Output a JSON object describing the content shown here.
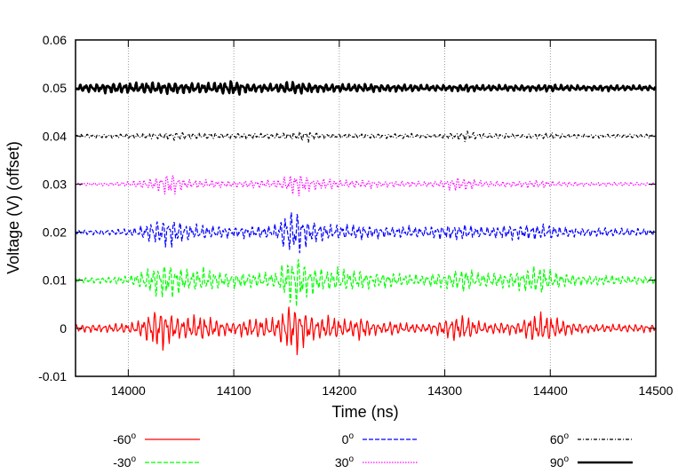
{
  "chart_data": {
    "type": "line",
    "title": "",
    "xlabel": "Time (ns)",
    "ylabel": "Voltage (V) (offset)",
    "xlim": [
      13950,
      14500
    ],
    "ylim": [
      -0.01,
      0.06
    ],
    "xticks": [
      14000,
      14100,
      14200,
      14300,
      14400,
      14500
    ],
    "xtick_labels": [
      "14000",
      "14100",
      "14200",
      "14300",
      "14400",
      "14500"
    ],
    "yticks": [
      -0.01,
      0,
      0.01,
      0.02,
      0.03,
      0.04,
      0.05,
      0.06
    ],
    "ytick_labels": [
      "-0.01",
      "0",
      "0.01",
      "0.02",
      "0.03",
      "0.04",
      "0.05",
      "0.06"
    ],
    "grid": "vertical dotted at x ticks",
    "legend_position": "bottom, below plot, three columns",
    "series": [
      {
        "name": "-60",
        "name_superscript": "o",
        "offset": 0,
        "color": "#ff0000",
        "dash": "solid",
        "width": 1.2,
        "x": [
          13950,
          13960,
          13970,
          13980,
          13990,
          14000,
          14010,
          14020,
          14030,
          14040,
          14050,
          14060,
          14070,
          14080,
          14090,
          14100,
          14110,
          14120,
          14130,
          14140,
          14150,
          14160,
          14170,
          14180,
          14190,
          14200,
          14210,
          14220,
          14230,
          14240,
          14250,
          14260,
          14270,
          14280,
          14290,
          14300,
          14310,
          14320,
          14330,
          14340,
          14350,
          14360,
          14370,
          14380,
          14390,
          14400,
          14410,
          14420,
          14430,
          14440,
          14450,
          14460,
          14470,
          14480,
          14490,
          14500
        ],
        "amplitude": [
          0.0008,
          0.0008,
          0.0008,
          0.0008,
          0.001,
          0.001,
          0.0015,
          0.003,
          0.0045,
          0.003,
          0.002,
          0.0025,
          0.0025,
          0.002,
          0.0015,
          0.0012,
          0.0018,
          0.002,
          0.002,
          0.002,
          0.0045,
          0.005,
          0.003,
          0.002,
          0.0025,
          0.002,
          0.0015,
          0.0025,
          0.0015,
          0.001,
          0.0015,
          0.001,
          0.001,
          0.0008,
          0.0012,
          0.0018,
          0.0025,
          0.0025,
          0.0015,
          0.001,
          0.0012,
          0.0012,
          0.0012,
          0.0025,
          0.003,
          0.0025,
          0.0018,
          0.0012,
          0.001,
          0.0008,
          0.0008,
          0.0008,
          0.0008,
          0.0008,
          0.0008,
          0.0008
        ]
      },
      {
        "name": "-30",
        "name_superscript": "o",
        "offset": 0.01,
        "color": "#00ff00",
        "dash": "dashed",
        "width": 1.2,
        "x": [
          13950,
          13960,
          13970,
          13980,
          13990,
          14000,
          14010,
          14020,
          14030,
          14040,
          14050,
          14060,
          14070,
          14080,
          14090,
          14100,
          14110,
          14120,
          14130,
          14140,
          14150,
          14160,
          14170,
          14180,
          14190,
          14200,
          14210,
          14220,
          14230,
          14240,
          14250,
          14260,
          14270,
          14280,
          14290,
          14300,
          14310,
          14320,
          14330,
          14340,
          14350,
          14360,
          14370,
          14380,
          14390,
          14400,
          14410,
          14420,
          14430,
          14440,
          14450,
          14460,
          14470,
          14480,
          14490,
          14500
        ],
        "amplitude": [
          0.0005,
          0.0006,
          0.0006,
          0.0006,
          0.0008,
          0.0008,
          0.0015,
          0.0025,
          0.0035,
          0.0035,
          0.0025,
          0.002,
          0.0025,
          0.002,
          0.0015,
          0.0015,
          0.0015,
          0.0015,
          0.0015,
          0.0015,
          0.004,
          0.0055,
          0.003,
          0.0025,
          0.002,
          0.0025,
          0.002,
          0.002,
          0.0015,
          0.0015,
          0.0015,
          0.0012,
          0.0012,
          0.001,
          0.0015,
          0.0015,
          0.002,
          0.0025,
          0.0015,
          0.0015,
          0.0015,
          0.0015,
          0.002,
          0.0025,
          0.003,
          0.002,
          0.0015,
          0.0012,
          0.001,
          0.001,
          0.001,
          0.001,
          0.0008,
          0.0008,
          0.0008,
          0.0008
        ]
      },
      {
        "name": "0",
        "name_superscript": "o",
        "offset": 0.02,
        "color": "#0000ff",
        "dash": "dashed",
        "width": 1.2,
        "x": [
          13950,
          13960,
          13970,
          13980,
          13990,
          14000,
          14010,
          14020,
          14030,
          14040,
          14050,
          14060,
          14070,
          14080,
          14090,
          14100,
          14110,
          14120,
          14130,
          14140,
          14150,
          14160,
          14170,
          14180,
          14190,
          14200,
          14210,
          14220,
          14230,
          14240,
          14250,
          14260,
          14270,
          14280,
          14290,
          14300,
          14310,
          14320,
          14330,
          14340,
          14350,
          14360,
          14370,
          14380,
          14390,
          14400,
          14410,
          14420,
          14430,
          14440,
          14450,
          14460,
          14470,
          14480,
          14490,
          14500
        ],
        "amplitude": [
          0.0004,
          0.0005,
          0.0005,
          0.0005,
          0.0006,
          0.0007,
          0.001,
          0.002,
          0.0025,
          0.003,
          0.002,
          0.0015,
          0.0015,
          0.0012,
          0.0012,
          0.001,
          0.0012,
          0.0012,
          0.0012,
          0.0015,
          0.004,
          0.0045,
          0.0025,
          0.002,
          0.0015,
          0.0015,
          0.0015,
          0.0015,
          0.0012,
          0.0012,
          0.001,
          0.0012,
          0.0012,
          0.001,
          0.0012,
          0.0015,
          0.0015,
          0.0015,
          0.0012,
          0.001,
          0.0012,
          0.0015,
          0.0015,
          0.0015,
          0.0015,
          0.0015,
          0.001,
          0.001,
          0.0008,
          0.0008,
          0.001,
          0.0008,
          0.0008,
          0.0008,
          0.0007,
          0.0006
        ]
      },
      {
        "name": "30",
        "name_superscript": "o",
        "offset": 0.03,
        "color": "#ff00ff",
        "dash": "dotted",
        "width": 1.2,
        "x": [
          13950,
          13960,
          13970,
          13980,
          13990,
          14000,
          14010,
          14020,
          14030,
          14040,
          14050,
          14060,
          14070,
          14080,
          14090,
          14100,
          14110,
          14120,
          14130,
          14140,
          14150,
          14160,
          14170,
          14180,
          14190,
          14200,
          14210,
          14220,
          14230,
          14240,
          14250,
          14260,
          14270,
          14280,
          14290,
          14300,
          14310,
          14320,
          14330,
          14340,
          14350,
          14360,
          14370,
          14380,
          14390,
          14400,
          14410,
          14420,
          14430,
          14440,
          14450,
          14460,
          14470,
          14480,
          14490,
          14500
        ],
        "amplitude": [
          0.0002,
          0.0003,
          0.0003,
          0.0003,
          0.0004,
          0.0005,
          0.0008,
          0.001,
          0.0015,
          0.0025,
          0.0012,
          0.0008,
          0.0008,
          0.0008,
          0.0007,
          0.0006,
          0.0007,
          0.0008,
          0.0008,
          0.0008,
          0.0015,
          0.0025,
          0.0015,
          0.001,
          0.0012,
          0.0008,
          0.0008,
          0.0008,
          0.0008,
          0.0006,
          0.0006,
          0.0006,
          0.0006,
          0.0005,
          0.0006,
          0.0008,
          0.0015,
          0.0012,
          0.0008,
          0.0006,
          0.0006,
          0.0006,
          0.0006,
          0.0008,
          0.0008,
          0.0006,
          0.0005,
          0.0005,
          0.0004,
          0.0004,
          0.0004,
          0.0004,
          0.0004,
          0.0004,
          0.0003,
          0.0003
        ]
      },
      {
        "name": "60",
        "name_superscript": "o",
        "offset": 0.04,
        "color": "#000000",
        "dash": "dashdot",
        "width": 1.2,
        "x": [
          13950,
          13960,
          13970,
          13980,
          13990,
          14000,
          14010,
          14020,
          14030,
          14040,
          14050,
          14060,
          14070,
          14080,
          14090,
          14100,
          14110,
          14120,
          14130,
          14140,
          14150,
          14160,
          14170,
          14180,
          14190,
          14200,
          14210,
          14220,
          14230,
          14240,
          14250,
          14260,
          14270,
          14280,
          14290,
          14300,
          14310,
          14320,
          14330,
          14340,
          14350,
          14360,
          14370,
          14380,
          14390,
          14400,
          14410,
          14420,
          14430,
          14440,
          14450,
          14460,
          14470,
          14480,
          14490,
          14500
        ],
        "amplitude": [
          0.0003,
          0.0004,
          0.0004,
          0.0004,
          0.0004,
          0.0005,
          0.0005,
          0.0006,
          0.0006,
          0.0008,
          0.0008,
          0.0006,
          0.0006,
          0.0006,
          0.0005,
          0.0006,
          0.0006,
          0.0006,
          0.0005,
          0.0006,
          0.0007,
          0.0008,
          0.0012,
          0.0006,
          0.0005,
          0.0005,
          0.0005,
          0.0005,
          0.0005,
          0.0005,
          0.0005,
          0.0005,
          0.0005,
          0.0004,
          0.0004,
          0.0006,
          0.0006,
          0.0012,
          0.0006,
          0.0005,
          0.0005,
          0.0005,
          0.0004,
          0.0005,
          0.0005,
          0.0008,
          0.0005,
          0.0004,
          0.0004,
          0.0004,
          0.0004,
          0.0004,
          0.0004,
          0.0004,
          0.0004,
          0.0004
        ]
      },
      {
        "name": "90",
        "name_superscript": "o",
        "offset": 0.05,
        "color": "#000000",
        "dash": "solid",
        "width": 2.6,
        "x": [
          13950,
          13960,
          13970,
          13980,
          13990,
          14000,
          14010,
          14020,
          14030,
          14040,
          14050,
          14060,
          14070,
          14080,
          14090,
          14100,
          14110,
          14120,
          14130,
          14140,
          14150,
          14160,
          14170,
          14180,
          14190,
          14200,
          14210,
          14220,
          14230,
          14240,
          14250,
          14260,
          14270,
          14280,
          14290,
          14300,
          14310,
          14320,
          14330,
          14340,
          14350,
          14360,
          14370,
          14380,
          14390,
          14400,
          14410,
          14420,
          14430,
          14440,
          14450,
          14460,
          14470,
          14480,
          14490,
          14500
        ],
        "amplitude": [
          0.0006,
          0.0008,
          0.0008,
          0.001,
          0.001,
          0.001,
          0.001,
          0.0012,
          0.001,
          0.0012,
          0.001,
          0.001,
          0.001,
          0.001,
          0.0012,
          0.0015,
          0.001,
          0.0008,
          0.0008,
          0.0008,
          0.0012,
          0.0012,
          0.001,
          0.0008,
          0.0008,
          0.0008,
          0.0008,
          0.0008,
          0.0008,
          0.0007,
          0.0007,
          0.0007,
          0.0007,
          0.0006,
          0.0006,
          0.0006,
          0.0006,
          0.0008,
          0.0006,
          0.0006,
          0.0006,
          0.0006,
          0.0006,
          0.0006,
          0.0006,
          0.0008,
          0.0006,
          0.0006,
          0.0005,
          0.0005,
          0.0006,
          0.0006,
          0.0005,
          0.0005,
          0.0005,
          0.0005
        ]
      }
    ]
  }
}
